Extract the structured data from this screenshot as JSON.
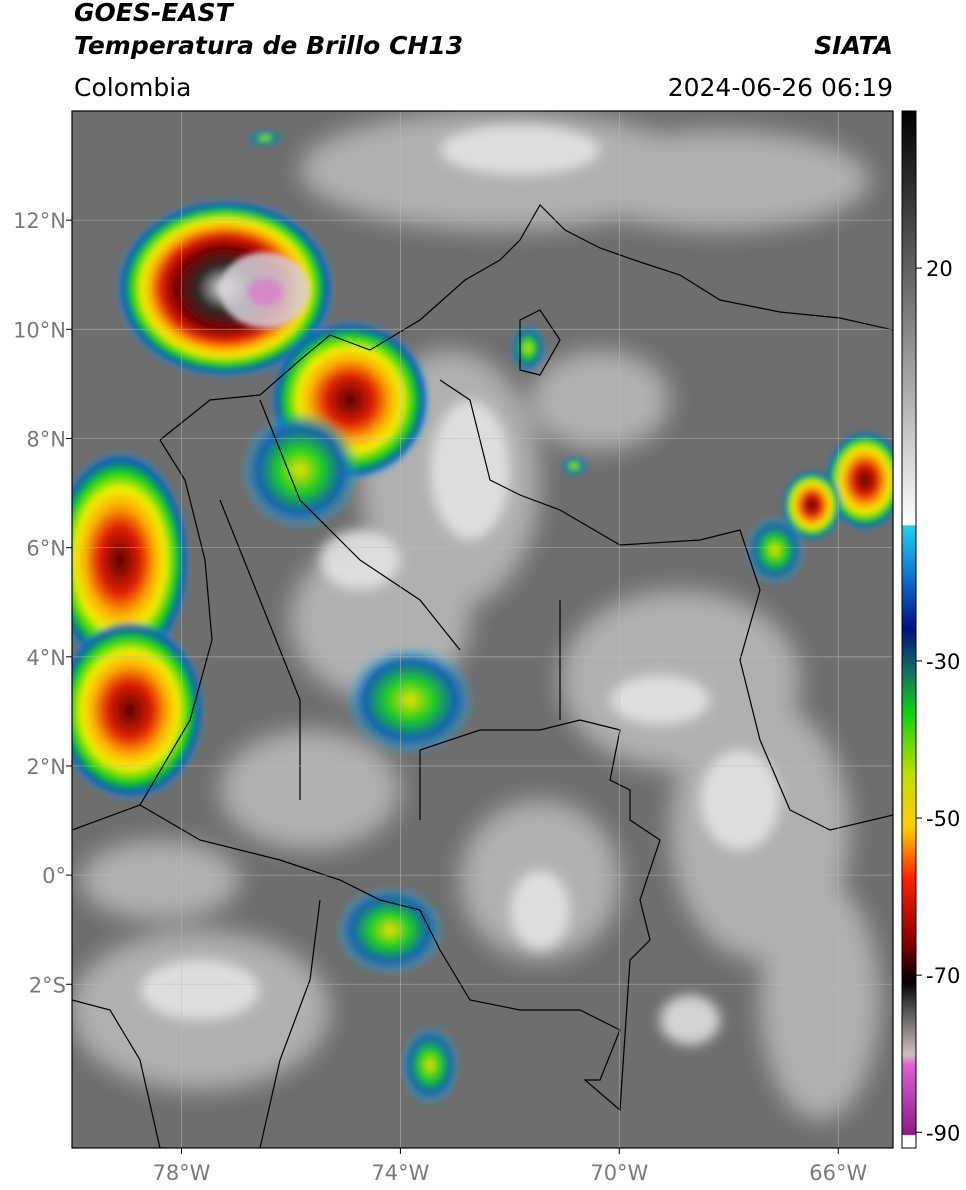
{
  "header": {
    "title": "GOES-EAST",
    "subtitle": "Temperatura de Brillo CH13",
    "source": "SIATA",
    "region": "Colombia",
    "datetime": "2024-06-26 06:19"
  },
  "map": {
    "xlim": [
      -80,
      -65
    ],
    "ylim": [
      -5,
      14
    ],
    "xticks": [
      {
        "value": -78,
        "label": "78°W"
      },
      {
        "value": -74,
        "label": "74°W"
      },
      {
        "value": -70,
        "label": "70°W"
      },
      {
        "value": -66,
        "label": "66°W"
      }
    ],
    "yticks": [
      {
        "value": 12,
        "label": "12°N"
      },
      {
        "value": 10,
        "label": "10°N"
      },
      {
        "value": 8,
        "label": "8°N"
      },
      {
        "value": 6,
        "label": "6°N"
      },
      {
        "value": 4,
        "label": "4°N"
      },
      {
        "value": 2,
        "label": "2°N"
      },
      {
        "value": 0,
        "label": "0°"
      },
      {
        "value": -2,
        "label": "2°S"
      }
    ],
    "grid": true
  },
  "colorbar": {
    "lim": [
      -92,
      40
    ],
    "ticks": [
      20,
      -30,
      -50,
      -70,
      -90
    ]
  }
}
